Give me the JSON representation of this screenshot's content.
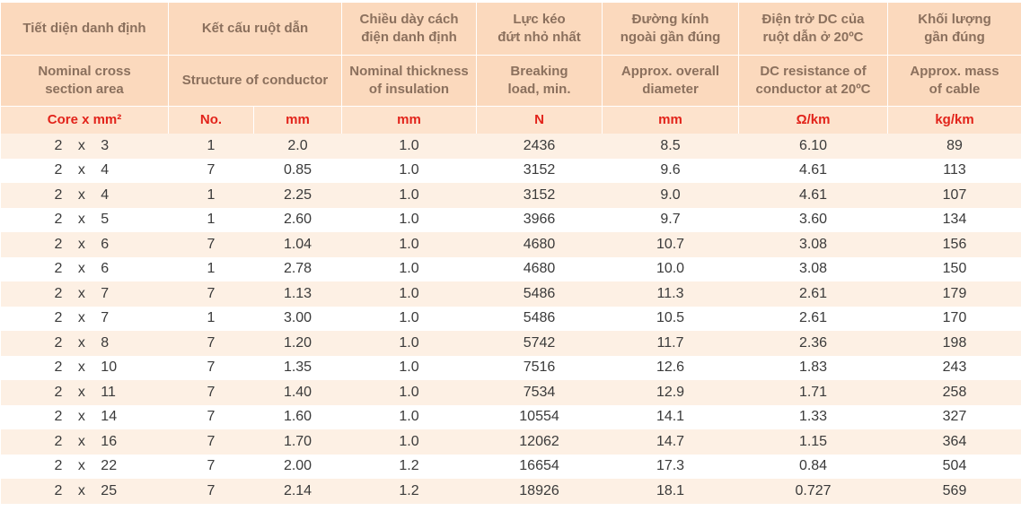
{
  "table": {
    "header_vi": [
      "Tiết diện danh định",
      "Kết cấu ruột dẫn",
      "Chiều dày cách\nđiện danh định",
      "Lực kéo\nđứt nhỏ nhất",
      "Đường kính\nngoài gần đúng",
      "Điện trở DC của\nruột dẫn ở 20ºC",
      "Khối lượng\ngần đúng"
    ],
    "header_en": [
      "Nominal cross\nsection area",
      "Structure of conductor",
      "Nominal thickness\nof insulation",
      "Breaking\nload, min.",
      "Approx. overall\ndiameter",
      "DC resistance of\nconductor at 20ºC",
      "Approx. mass\nof cable"
    ],
    "units": [
      "Core x mm²",
      "No.",
      "mm",
      "mm",
      "N",
      "mm",
      "Ω/km",
      "kg/km"
    ],
    "rows": [
      [
        "2 x 3",
        "1",
        "2.0",
        "1.0",
        "2436",
        "8.5",
        "6.10",
        "89"
      ],
      [
        "2 x 4",
        "7",
        "0.85",
        "1.0",
        "3152",
        "9.6",
        "4.61",
        "113"
      ],
      [
        "2 x 4",
        "1",
        "2.25",
        "1.0",
        "3152",
        "9.0",
        "4.61",
        "107"
      ],
      [
        "2 x 5",
        "1",
        "2.60",
        "1.0",
        "3966",
        "9.7",
        "3.60",
        "134"
      ],
      [
        "2 x 6",
        "7",
        "1.04",
        "1.0",
        "4680",
        "10.7",
        "3.08",
        "156"
      ],
      [
        "2 x 6",
        "1",
        "2.78",
        "1.0",
        "4680",
        "10.0",
        "3.08",
        "150"
      ],
      [
        "2 x 7",
        "7",
        "1.13",
        "1.0",
        "5486",
        "11.3",
        "2.61",
        "179"
      ],
      [
        "2 x 7",
        "1",
        "3.00",
        "1.0",
        "5486",
        "10.5",
        "2.61",
        "170"
      ],
      [
        "2 x 8",
        "7",
        "1.20",
        "1.0",
        "5742",
        "11.7",
        "2.36",
        "198"
      ],
      [
        "2 x 10",
        "7",
        "1.35",
        "1.0",
        "7516",
        "12.6",
        "1.83",
        "243"
      ],
      [
        "2 x 11",
        "7",
        "1.40",
        "1.0",
        "7534",
        "12.9",
        "1.71",
        "258"
      ],
      [
        "2 x 14",
        "7",
        "1.60",
        "1.0",
        "10554",
        "14.1",
        "1.33",
        "327"
      ],
      [
        "2 x 16",
        "7",
        "1.70",
        "1.0",
        "12062",
        "14.7",
        "1.15",
        "364"
      ],
      [
        "2 x 22",
        "7",
        "2.00",
        "1.2",
        "16654",
        "17.3",
        "0.84",
        "504"
      ],
      [
        "2 x 25",
        "7",
        "2.14",
        "1.2",
        "18926",
        "18.1",
        "0.727",
        "569"
      ]
    ]
  }
}
